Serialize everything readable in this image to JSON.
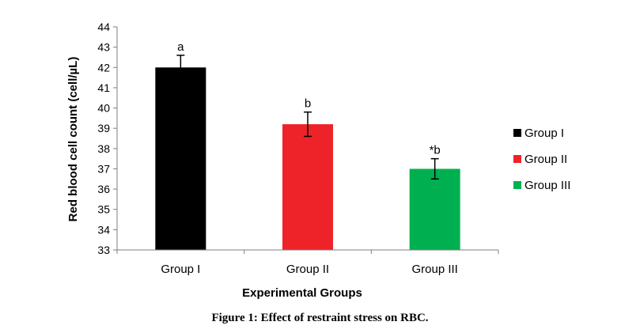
{
  "chart_data": {
    "type": "bar",
    "xlabel": "Experimental Groups",
    "ylabel": "Red blood cell count (cell/µL)",
    "ylim": [
      33,
      44
    ],
    "yticks": [
      33,
      34,
      35,
      36,
      37,
      38,
      39,
      40,
      41,
      42,
      43,
      44
    ],
    "categories": [
      "Group I",
      "Group II",
      "Group III"
    ],
    "values": [
      42.0,
      39.2,
      37.0
    ],
    "errors": [
      0.6,
      0.6,
      0.5
    ],
    "data_labels": [
      "a",
      "b",
      "*b"
    ],
    "colors": [
      "#000000",
      "#ee2329",
      "#00b050"
    ],
    "legend": {
      "placement": "right",
      "entries": [
        "Group I",
        "Group II",
        "Group III"
      ]
    },
    "grid": false
  },
  "caption": "Figure 1: Effect of restraint stress on RBC."
}
